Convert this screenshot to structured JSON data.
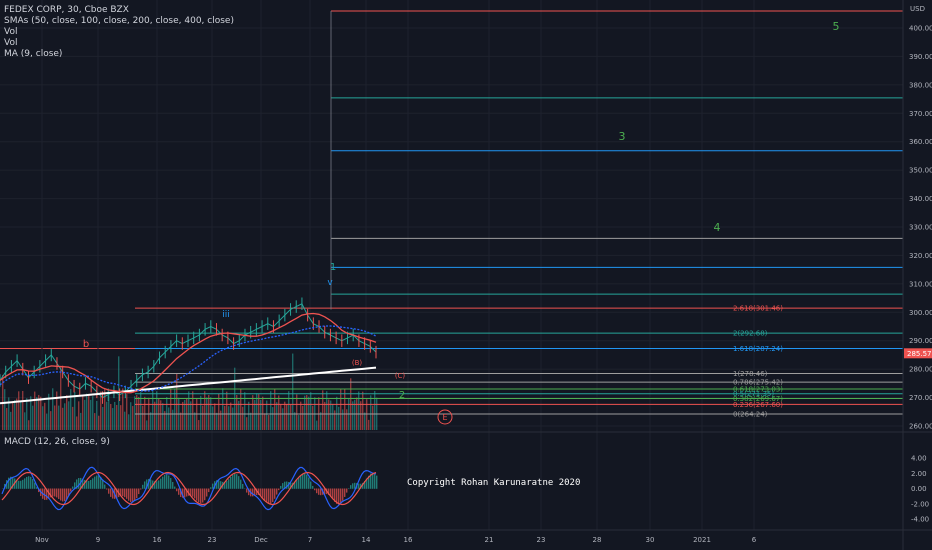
{
  "legend": {
    "symbol": "FEDEX CORP, 30, Cboe BZX",
    "smas": "SMAs (50, close, 100, close, 200, close, 400, close)",
    "vol1": "Vol",
    "vol2": "Vol",
    "ma": "MA (9, close)"
  },
  "macd_legend": "MACD (12, 26, close, 9)",
  "copyright": "Copyright Rohan Karunaratne 2020",
  "currency": "USD",
  "last_price": "285.57",
  "colors": {
    "background": "#131722",
    "up": "#26a69a",
    "down": "#ef5350",
    "sma200": "#ffffff",
    "sma100": "#2962ff",
    "sma50": "#ef5350",
    "ma9": "#26a69a"
  },
  "chart_data": {
    "type": "line",
    "title": "FEDEX CORP, 30, Cboe BZX",
    "ylim": [
      258,
      406
    ],
    "y_ticks": [
      "400.00",
      "390.00",
      "380.00",
      "370.00",
      "360.00",
      "350.00",
      "340.00",
      "330.00",
      "320.00",
      "310.00",
      "300.00",
      "290.00",
      "280.00",
      "270.00",
      "260.00"
    ],
    "x_ticks": [
      "Nov",
      "9",
      "16",
      "23",
      "Dec",
      "7",
      "14",
      "16",
      "21",
      "23",
      "28",
      "30",
      "2021",
      "6"
    ],
    "macd_ticks": [
      "4.00",
      "2.00",
      "0.00",
      "-2.00",
      "-4.00"
    ],
    "fib_levels": [
      {
        "label": "2.618(301.46)",
        "value": 301.46,
        "color": "#ef5350"
      },
      {
        "label": "2(292.68)",
        "value": 292.68,
        "color": "#26a69a"
      },
      {
        "label": "1.618(287.24)",
        "value": 287.24,
        "color": "#2196f3"
      },
      {
        "label": "1(278.46)",
        "value": 278.46,
        "color": "#9e9e9e"
      },
      {
        "label": "0.786(275.42)",
        "value": 275.42,
        "color": "#9e9e9e"
      },
      {
        "label": "0.618(273.03)",
        "value": 273.03,
        "color": "#4caf50"
      },
      {
        "label": "0.5(271.35)",
        "value": 271.35,
        "color": "#26a69a"
      },
      {
        "label": "0.382(269.67)",
        "value": 269.67,
        "color": "#4caf50"
      },
      {
        "label": "0.236(267.60)",
        "value": 267.6,
        "color": "#ef5350"
      },
      {
        "label": "0(264.24)",
        "value": 264.24,
        "color": "#9e9e9e"
      }
    ],
    "projection_levels": [
      {
        "value": 406.0,
        "color": "#ef5350"
      },
      {
        "value": 375.4,
        "color": "#26a69a"
      },
      {
        "value": 356.8,
        "color": "#2196f3"
      },
      {
        "value": 326.0,
        "color": "#9e9e9e"
      },
      {
        "value": 315.8,
        "color": "#2196f3"
      },
      {
        "value": 306.4,
        "color": "#26a69a"
      }
    ],
    "wave_labels": [
      {
        "text": "5",
        "color": "#4caf50"
      },
      {
        "text": "3",
        "color": "#4caf50"
      },
      {
        "text": "4",
        "color": "#4caf50"
      },
      {
        "text": "1",
        "color": "#26a69a"
      },
      {
        "text": "v",
        "color": "#2196f3"
      },
      {
        "text": "iii",
        "color": "#2196f3"
      },
      {
        "text": "b",
        "color": "#ef5350"
      },
      {
        "text": "(B)",
        "color": "#ef5350"
      },
      {
        "text": "(C)",
        "color": "#ef5350"
      },
      {
        "text": "2",
        "color": "#4caf50"
      },
      {
        "text": "E",
        "color": "#ef5350"
      }
    ],
    "price_series": [
      276,
      279,
      281,
      283,
      280,
      277,
      279,
      281,
      283,
      285,
      282,
      279,
      276,
      274,
      273,
      275,
      274,
      272,
      270,
      271,
      272,
      271,
      272,
      274,
      276,
      278,
      279,
      281,
      284,
      286,
      288,
      290,
      289,
      290,
      291,
      292,
      294,
      295,
      294,
      292,
      291,
      289,
      290,
      292,
      293,
      294,
      295,
      296,
      295,
      297,
      299,
      301,
      302,
      303,
      299,
      296,
      295,
      293,
      292,
      291,
      290,
      291,
      292,
      290,
      289,
      288,
      286
    ]
  }
}
